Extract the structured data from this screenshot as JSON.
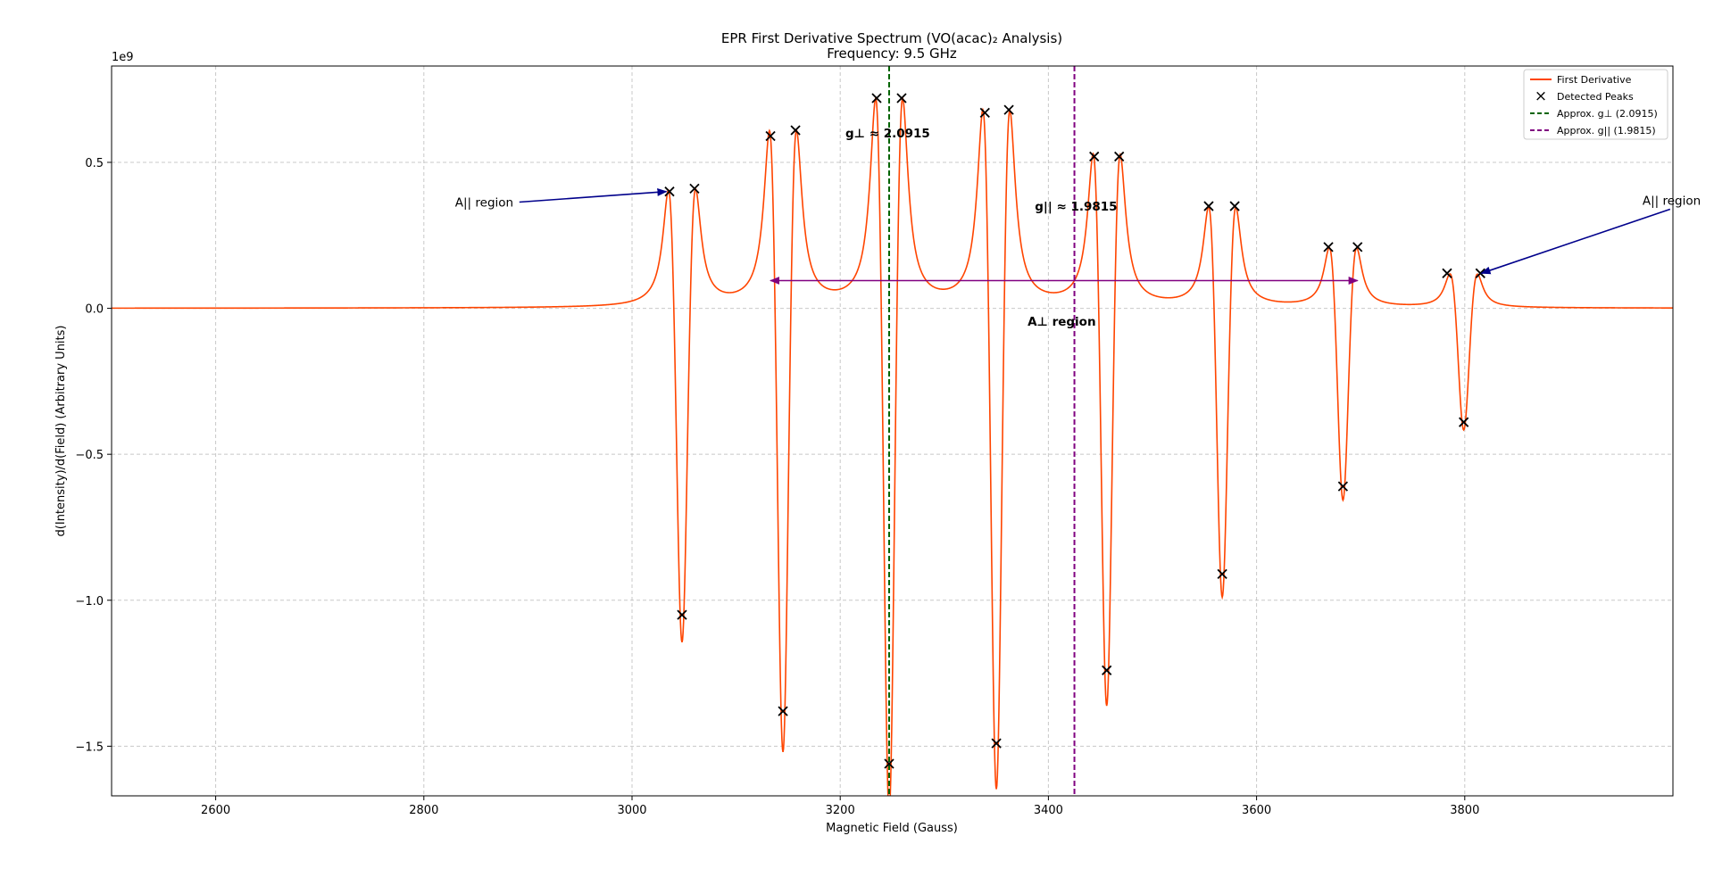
{
  "chart_data": {
    "type": "line",
    "title": "EPR First Derivative Spectrum (VO(acac)₂ Analysis)",
    "subtitle": "Frequency: 9.5 GHz",
    "xlabel": "Magnetic Field (Gauss)",
    "ylabel": "d(Intensity)/d(Field) (Arbitrary Units)",
    "y_scale_label": "1e9",
    "xlim": [
      2500,
      4000
    ],
    "ylim": [
      -1.67,
      0.83
    ],
    "x_ticks": [
      2600,
      2800,
      3000,
      3200,
      3400,
      3600,
      3800
    ],
    "x_tick_labels": [
      "2600",
      "2800",
      "3000",
      "3200",
      "3400",
      "3600",
      "3800"
    ],
    "y_ticks": [
      -1.5,
      -1.0,
      -0.5,
      0.0,
      0.5
    ],
    "y_tick_labels": [
      "−1.5",
      "−1.0",
      "−0.5",
      "0.0",
      "0.5"
    ],
    "grid": true,
    "legend_position": "top-right",
    "colors": {
      "line": "#ff4500",
      "peaks": "#000000",
      "g_perp": "#006400",
      "g_par": "#800080",
      "annotation": "#00008b"
    },
    "series": [
      {
        "name": "First Derivative",
        "style": "solid-line"
      },
      {
        "name": "Detected Peaks",
        "style": "x-markers"
      },
      {
        "name": "Approx. g⊥ (2.0915)",
        "style": "dashed-line"
      },
      {
        "name": "Approx. g|| (1.9815)",
        "style": "dashed-line"
      }
    ],
    "lines": [
      {
        "center": 3048,
        "amp": 0.41,
        "min": -1.05
      },
      {
        "center": 3145,
        "amp": 0.61,
        "min": -1.38
      },
      {
        "center": 3247,
        "amp": 0.72,
        "min": -1.56
      },
      {
        "center": 3350,
        "amp": 0.68,
        "min": -1.49
      },
      {
        "center": 3456,
        "amp": 0.53,
        "min": -1.24
      },
      {
        "center": 3567,
        "amp": 0.35,
        "min": -0.91
      },
      {
        "center": 3683,
        "amp": 0.21,
        "min": -0.61
      },
      {
        "center": 3799,
        "amp": 0.12,
        "min": -0.39
      }
    ],
    "peaks": [
      {
        "x": 3036,
        "y": 0.4
      },
      {
        "x": 3048,
        "y": -1.05
      },
      {
        "x": 3060,
        "y": 0.41
      },
      {
        "x": 3133,
        "y": 0.59
      },
      {
        "x": 3145,
        "y": -1.38
      },
      {
        "x": 3157,
        "y": 0.61
      },
      {
        "x": 3235,
        "y": 0.72
      },
      {
        "x": 3247,
        "y": -1.56
      },
      {
        "x": 3259,
        "y": 0.72
      },
      {
        "x": 3339,
        "y": 0.67
      },
      {
        "x": 3350,
        "y": -1.49
      },
      {
        "x": 3362,
        "y": 0.68
      },
      {
        "x": 3444,
        "y": 0.52
      },
      {
        "x": 3456,
        "y": -1.24
      },
      {
        "x": 3468,
        "y": 0.52
      },
      {
        "x": 3554,
        "y": 0.35
      },
      {
        "x": 3567,
        "y": -0.91
      },
      {
        "x": 3579,
        "y": 0.35
      },
      {
        "x": 3669,
        "y": 0.21
      },
      {
        "x": 3683,
        "y": -0.61
      },
      {
        "x": 3697,
        "y": 0.21
      },
      {
        "x": 3783,
        "y": 0.12
      },
      {
        "x": 3799,
        "y": -0.39
      },
      {
        "x": 3815,
        "y": 0.12
      }
    ],
    "vlines": [
      {
        "name": "g-perp-line",
        "x": 3247,
        "color": "#006400"
      },
      {
        "name": "g-par-line",
        "x": 3425,
        "color": "#800080"
      }
    ],
    "annotations": {
      "g_perp_label": {
        "text": "g⊥ ≈ 2.0915",
        "x": 3205,
        "y": 0.585,
        "color": "#006400"
      },
      "g_par_label": {
        "text": "g|| ≈ 1.9815",
        "x": 3387,
        "y": 0.335,
        "color": "#800080"
      },
      "a_perp_label": {
        "text": "A⊥ region",
        "x": 3380,
        "y": -0.06,
        "color": "#800080"
      },
      "a_par_left": {
        "text": "A|| region",
        "text_x": 2830,
        "text_y": 0.37,
        "arrow_to_x": 3033,
        "arrow_to_y": 0.4
      },
      "a_par_right": {
        "text": "A|| region",
        "text_x": 3999,
        "text_y": 0.37,
        "arrow_to_x": 3816,
        "arrow_to_y": 0.12
      },
      "a_perp_span": {
        "from_x": 3133,
        "to_x": 3697,
        "y": 0.095
      }
    }
  }
}
